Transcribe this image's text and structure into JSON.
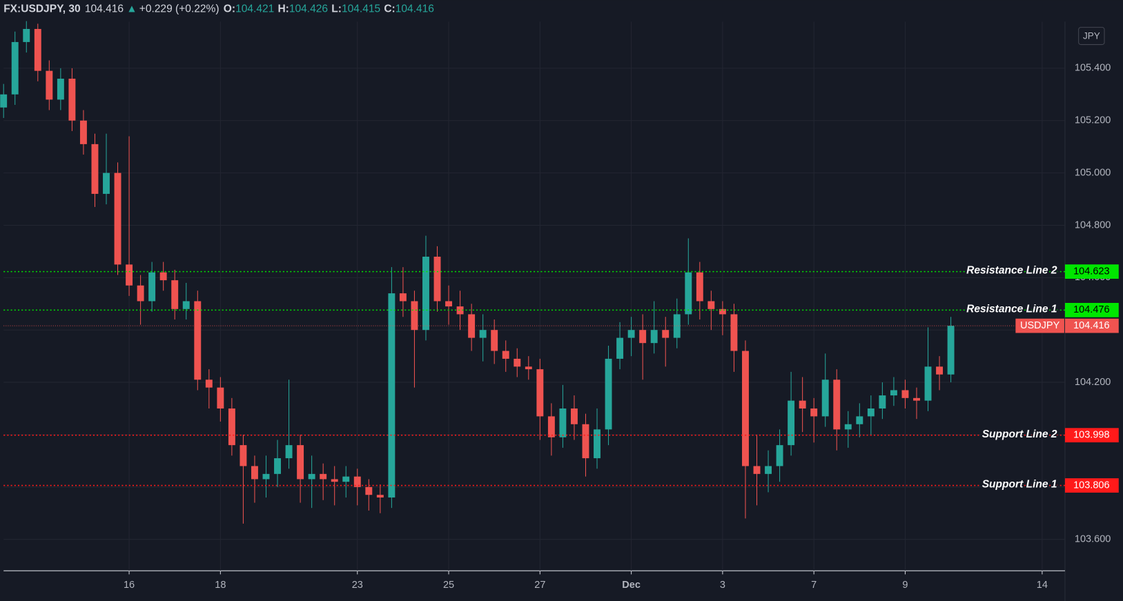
{
  "header": {
    "symbol": "FX:USDJPY, 30",
    "last": "104.416",
    "arrow": "▲",
    "change": "+0.229 (+0.22%)",
    "ohlc": [
      {
        "label": "O:",
        "value": "104.421"
      },
      {
        "label": "H:",
        "value": "104.426"
      },
      {
        "label": "L:",
        "value": "104.415"
      },
      {
        "label": "C:",
        "value": "104.416"
      }
    ],
    "currency_button": "JPY"
  },
  "chart_data": {
    "type": "candlestick",
    "up_color": "#26a69a",
    "down_color": "#ef5350",
    "grid": true,
    "x": [
      -2.75,
      -2.5,
      -2.25,
      -2,
      -1.75,
      -1.5,
      -1.25,
      -1,
      -0.75,
      -0.5,
      -0.25,
      0,
      0.25,
      0.5,
      0.75,
      1,
      1.25,
      1.5,
      1.75,
      2,
      2.25,
      2.5,
      2.75,
      3,
      3.25,
      3.5,
      3.75,
      4,
      4.25,
      4.5,
      4.75,
      5,
      5.25,
      5.5,
      5.75,
      6,
      6.25,
      6.5,
      6.75,
      7,
      7.25,
      7.5,
      7.75,
      8,
      8.25,
      8.5,
      8.75,
      9,
      9.25,
      9.5,
      9.75,
      10,
      10.25,
      10.5,
      10.75,
      11,
      11.25,
      11.5,
      11.75,
      12,
      12.25,
      12.5,
      12.75,
      13,
      13.25,
      13.5,
      13.75,
      14,
      14.25,
      14.5,
      14.75,
      15,
      15.25,
      15.5,
      15.75,
      16,
      16.25,
      16.5,
      16.75,
      17,
      17.25,
      17.5,
      17.75,
      18
    ],
    "open": [
      105.25,
      105.3,
      105.5,
      105.55,
      105.39,
      105.28,
      105.36,
      105.2,
      105.11,
      104.92,
      105.0,
      104.65,
      104.57,
      104.51,
      104.62,
      104.59,
      104.48,
      104.51,
      104.21,
      104.18,
      104.1,
      103.96,
      103.88,
      103.83,
      103.85,
      103.91,
      103.96,
      103.83,
      103.85,
      103.83,
      103.82,
      103.84,
      103.8,
      103.77,
      103.76,
      104.54,
      104.51,
      104.4,
      104.68,
      104.51,
      104.49,
      104.46,
      104.37,
      104.4,
      104.32,
      104.29,
      104.26,
      104.25,
      104.07,
      103.99,
      104.1,
      104.04,
      103.91,
      104.02,
      104.29,
      104.37,
      104.4,
      104.35,
      104.4,
      104.37,
      104.46,
      104.62,
      104.51,
      104.48,
      104.46,
      104.32,
      103.88,
      103.85,
      103.88,
      103.96,
      104.13,
      104.1,
      104.07,
      104.21,
      104.02,
      104.04,
      104.07,
      104.1,
      104.15,
      104.17,
      104.14,
      104.13,
      104.26,
      104.23
    ],
    "high": [
      105.34,
      105.54,
      105.58,
      105.57,
      105.43,
      105.4,
      105.4,
      105.24,
      105.15,
      105.15,
      105.04,
      105.14,
      104.61,
      104.66,
      104.66,
      104.63,
      104.58,
      104.55,
      104.25,
      104.22,
      104.14,
      104.0,
      103.92,
      103.92,
      103.98,
      104.21,
      104.0,
      103.92,
      103.89,
      103.88,
      103.88,
      103.87,
      103.83,
      103.81,
      104.64,
      104.64,
      104.55,
      104.76,
      104.72,
      104.57,
      104.55,
      104.5,
      104.46,
      104.44,
      104.36,
      104.33,
      104.3,
      104.29,
      104.12,
      104.19,
      104.15,
      104.08,
      104.1,
      104.34,
      104.43,
      104.45,
      104.46,
      104.51,
      104.45,
      104.52,
      104.75,
      104.66,
      104.55,
      104.51,
      104.5,
      104.36,
      104.0,
      103.94,
      104.02,
      104.24,
      104.22,
      104.14,
      104.31,
      104.25,
      104.09,
      104.12,
      104.15,
      104.2,
      104.22,
      104.21,
      104.18,
      104.41,
      104.3,
      104.45
    ],
    "low": [
      105.21,
      105.26,
      105.46,
      105.35,
      105.24,
      105.24,
      105.16,
      105.07,
      104.87,
      104.88,
      104.61,
      104.53,
      104.42,
      104.47,
      104.55,
      104.44,
      104.44,
      104.17,
      104.1,
      104.05,
      103.92,
      103.66,
      103.74,
      103.76,
      103.8,
      103.87,
      103.74,
      103.72,
      103.75,
      103.73,
      103.76,
      103.73,
      103.71,
      103.7,
      103.72,
      104.45,
      104.18,
      104.36,
      104.47,
      104.42,
      104.4,
      104.32,
      104.28,
      104.27,
      104.24,
      104.22,
      104.21,
      103.98,
      103.92,
      103.95,
      103.98,
      103.84,
      103.87,
      103.96,
      104.25,
      104.3,
      104.21,
      104.31,
      104.26,
      104.33,
      104.42,
      104.44,
      104.4,
      104.38,
      104.24,
      103.68,
      103.73,
      103.78,
      103.82,
      103.92,
      104.01,
      103.97,
      104.03,
      103.94,
      103.95,
      103.99,
      104.0,
      104.06,
      104.11,
      104.1,
      104.06,
      104.09,
      104.17,
      104.2
    ],
    "close": [
      105.3,
      105.5,
      105.55,
      105.39,
      105.28,
      105.36,
      105.2,
      105.11,
      104.92,
      105.0,
      104.65,
      104.57,
      104.51,
      104.62,
      104.59,
      104.48,
      104.51,
      104.21,
      104.18,
      104.1,
      103.96,
      103.88,
      103.83,
      103.85,
      103.91,
      103.96,
      103.83,
      103.85,
      103.83,
      103.82,
      103.84,
      103.8,
      103.77,
      103.76,
      104.54,
      104.51,
      104.4,
      104.68,
      104.51,
      104.49,
      104.46,
      104.37,
      104.4,
      104.32,
      104.29,
      104.26,
      104.25,
      104.07,
      103.99,
      104.1,
      104.04,
      103.91,
      104.02,
      104.29,
      104.37,
      104.4,
      104.35,
      104.4,
      104.37,
      104.46,
      104.62,
      104.51,
      104.48,
      104.46,
      104.32,
      103.88,
      103.85,
      103.88,
      103.96,
      104.13,
      104.1,
      104.07,
      104.21,
      104.02,
      104.04,
      104.07,
      104.1,
      104.15,
      104.17,
      104.14,
      104.13,
      104.26,
      104.23,
      104.416
    ],
    "xlim": [
      -2.75,
      20.5
    ],
    "xticks": [
      {
        "value": 0,
        "label": "16"
      },
      {
        "value": 2,
        "label": "18"
      },
      {
        "value": 5,
        "label": "23"
      },
      {
        "value": 7,
        "label": "25"
      },
      {
        "value": 9,
        "label": "27"
      },
      {
        "value": 11,
        "label": "Dec"
      },
      {
        "value": 13,
        "label": "3"
      },
      {
        "value": 15,
        "label": "7"
      },
      {
        "value": 17,
        "label": "9"
      },
      {
        "value": 20,
        "label": "14"
      }
    ],
    "ylim": [
      103.48,
      105.578
    ],
    "yticks": [
      {
        "value": 103.6,
        "label": "103.600"
      },
      {
        "value": 103.8,
        "label": "103.800"
      },
      {
        "value": 104.0,
        "label": "104.000"
      },
      {
        "value": 104.2,
        "label": "104.200"
      },
      {
        "value": 104.4,
        "label": "104.400"
      },
      {
        "value": 104.6,
        "label": "104.600"
      },
      {
        "value": 104.8,
        "label": "104.800"
      },
      {
        "value": 105.0,
        "label": "105.000"
      },
      {
        "value": 105.2,
        "label": "105.200"
      },
      {
        "value": 105.4,
        "label": "105.400"
      }
    ],
    "levels": [
      {
        "name": "Resistance Line 2",
        "value": 104.623,
        "color": "#00e600"
      },
      {
        "name": "Resistance Line 1",
        "value": 104.476,
        "color": "#00e600"
      },
      {
        "name": "Support Line 2",
        "value": 103.998,
        "color": "#ff1a1a"
      },
      {
        "name": "Support Line 1",
        "value": 103.806,
        "color": "#ff1a1a"
      }
    ],
    "last_price": {
      "label": "USDJPY",
      "value": 104.416,
      "color": "#ef5350"
    }
  }
}
